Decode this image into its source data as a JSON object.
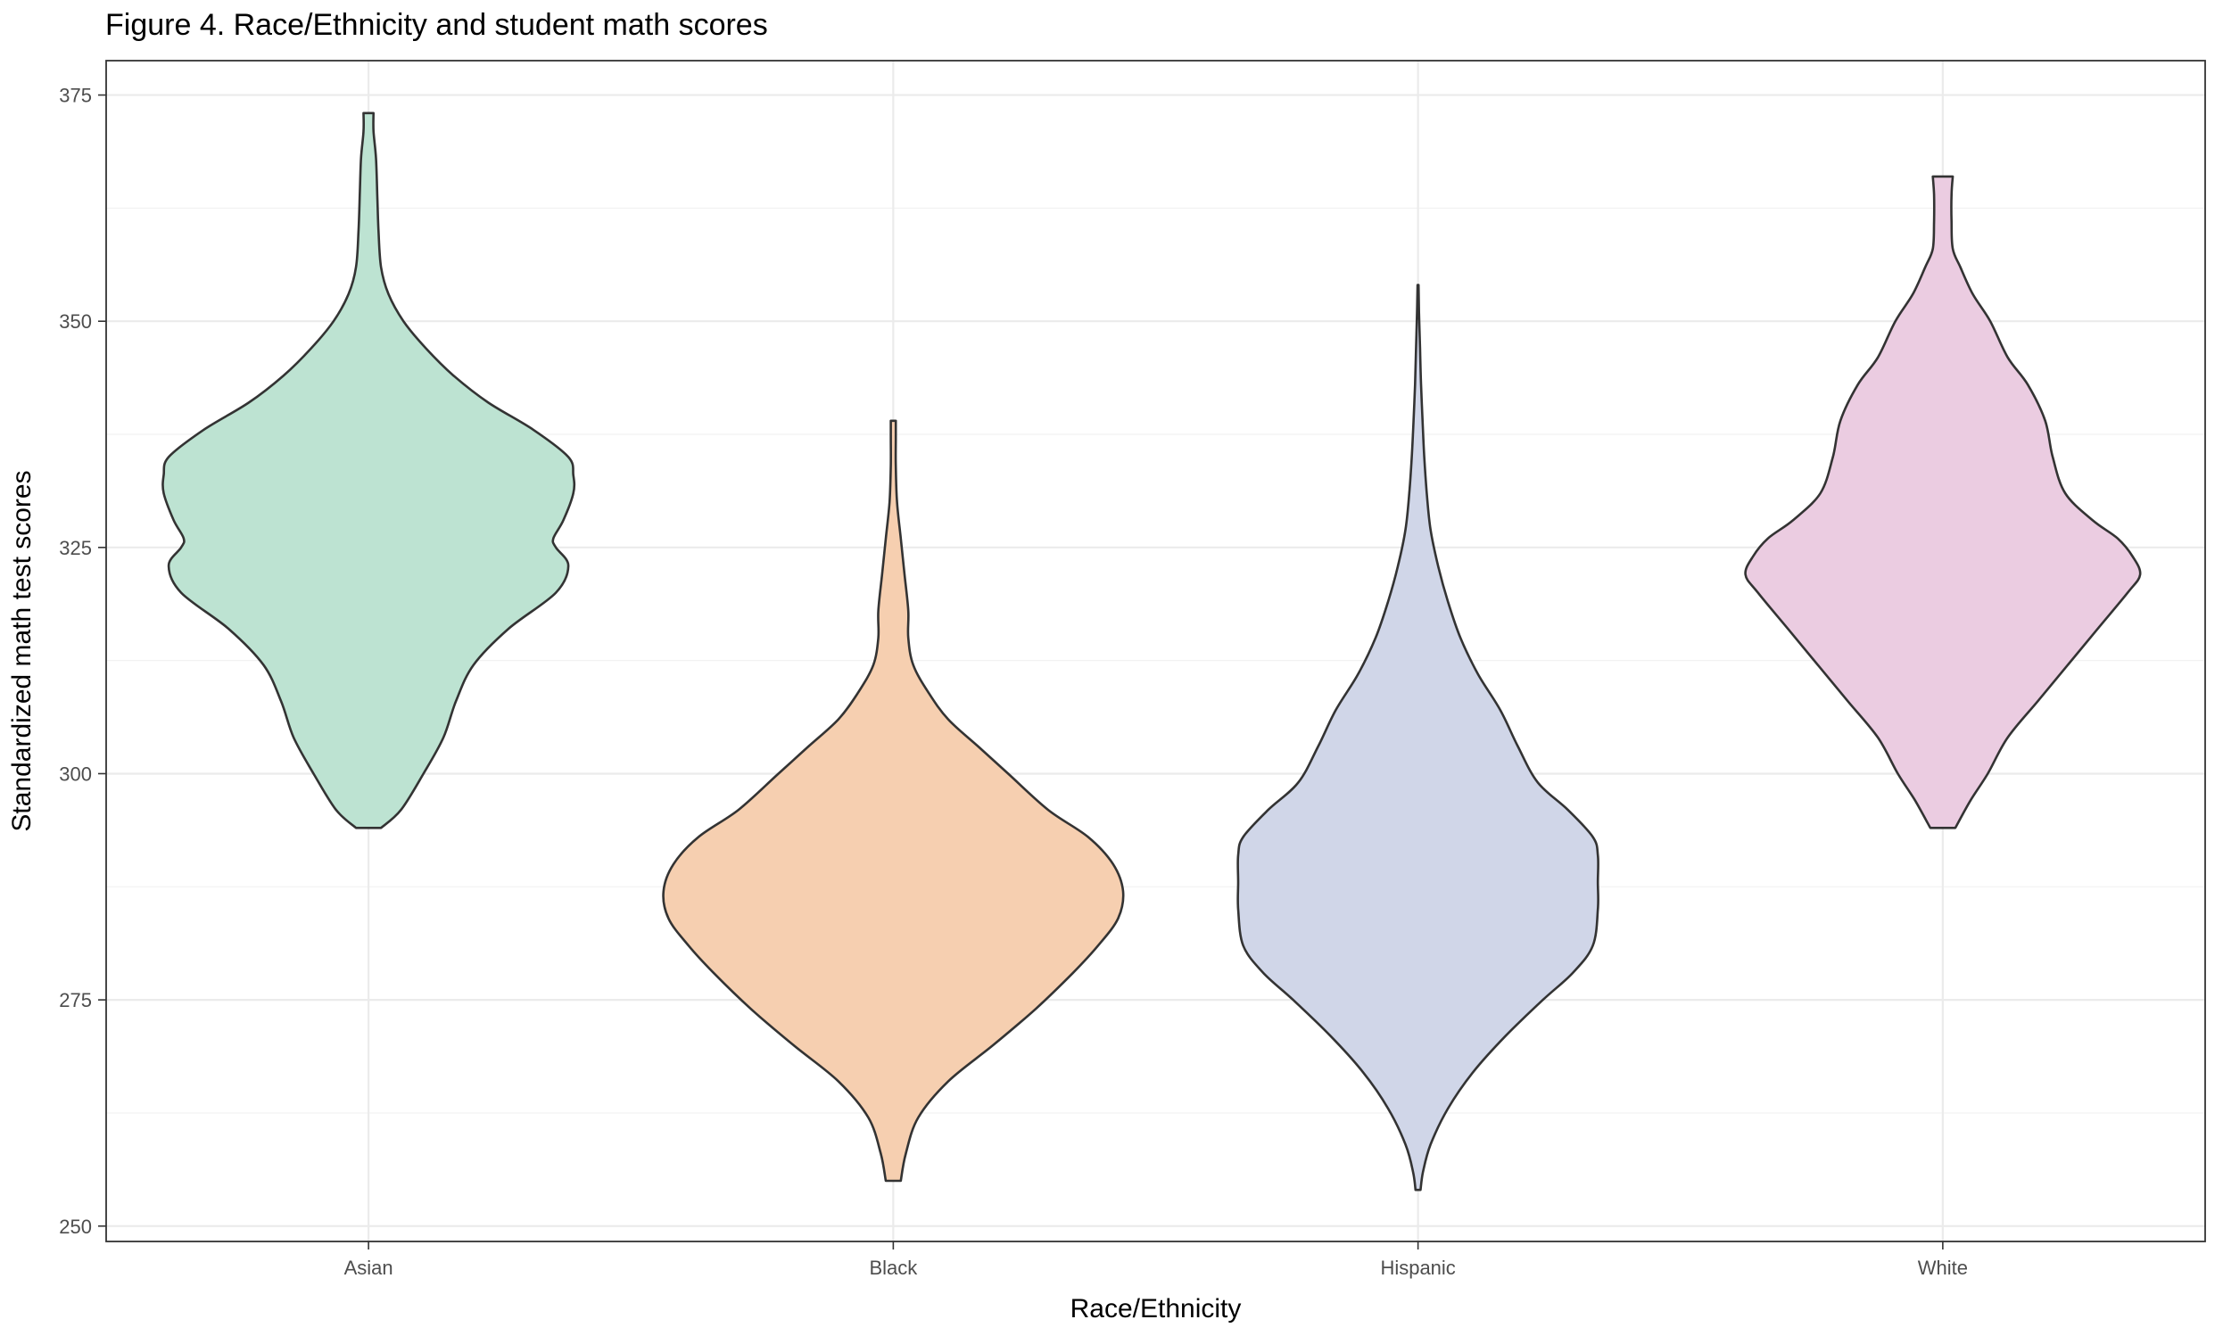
{
  "chart_data": {
    "type": "violin",
    "title": "Figure 4. Race/Ethnicity and student math scores",
    "xlabel": "Race/Ethnicity",
    "ylabel": "Standardized math test scores",
    "ylim": [
      248.3,
      378.8
    ],
    "yticks": [
      250,
      275,
      300,
      325,
      350,
      375
    ],
    "ytick_labels": [
      "250",
      "275",
      "300",
      "325",
      "350",
      "375"
    ],
    "grid": true,
    "legend": "none",
    "categories": [
      "Asian",
      "Black",
      "Hispanic",
      "White"
    ],
    "series": [
      {
        "category": "Asian",
        "color": "#bde3d2",
        "min": 294,
        "max": 373,
        "profile": [
          [
            294,
            0.05
          ],
          [
            296,
            0.13
          ],
          [
            300,
            0.22
          ],
          [
            304,
            0.3
          ],
          [
            308,
            0.35
          ],
          [
            312,
            0.42
          ],
          [
            316,
            0.56
          ],
          [
            320,
            0.75
          ],
          [
            323,
            0.8
          ],
          [
            325,
            0.75
          ],
          [
            326,
            0.74
          ],
          [
            328,
            0.78
          ],
          [
            331,
            0.82
          ],
          [
            333,
            0.82
          ],
          [
            335,
            0.8
          ],
          [
            338,
            0.66
          ],
          [
            341,
            0.48
          ],
          [
            344,
            0.34
          ],
          [
            347,
            0.23
          ],
          [
            350,
            0.14
          ],
          [
            353,
            0.08
          ],
          [
            356,
            0.05
          ],
          [
            360,
            0.04
          ],
          [
            364,
            0.035
          ],
          [
            368,
            0.03
          ],
          [
            371,
            0.02
          ],
          [
            373,
            0.02
          ]
        ]
      },
      {
        "category": "Black",
        "color": "#f6cfb0",
        "min": 255,
        "max": 339,
        "profile": [
          [
            255,
            0.03
          ],
          [
            258,
            0.05
          ],
          [
            262,
            0.1
          ],
          [
            266,
            0.22
          ],
          [
            270,
            0.4
          ],
          [
            274,
            0.57
          ],
          [
            278,
            0.72
          ],
          [
            281,
            0.82
          ],
          [
            284,
            0.9
          ],
          [
            287,
            0.92
          ],
          [
            290,
            0.88
          ],
          [
            293,
            0.78
          ],
          [
            296,
            0.62
          ],
          [
            300,
            0.46
          ],
          [
            303,
            0.34
          ],
          [
            306,
            0.22
          ],
          [
            309,
            0.14
          ],
          [
            312,
            0.08
          ],
          [
            315,
            0.06
          ],
          [
            318,
            0.06
          ],
          [
            322,
            0.045
          ],
          [
            326,
            0.03
          ],
          [
            330,
            0.015
          ],
          [
            334,
            0.01
          ],
          [
            337,
            0.01
          ],
          [
            339,
            0.01
          ]
        ]
      },
      {
        "category": "Hispanic",
        "color": "#d0d6e8",
        "min": 254,
        "max": 354,
        "profile": [
          [
            254,
            0.01
          ],
          [
            256,
            0.02
          ],
          [
            259,
            0.05
          ],
          [
            263,
            0.12
          ],
          [
            267,
            0.22
          ],
          [
            271,
            0.35
          ],
          [
            275,
            0.5
          ],
          [
            278,
            0.62
          ],
          [
            281,
            0.7
          ],
          [
            285,
            0.72
          ],
          [
            288,
            0.72
          ],
          [
            291,
            0.72
          ],
          [
            293,
            0.7
          ],
          [
            296,
            0.6
          ],
          [
            299,
            0.48
          ],
          [
            303,
            0.4
          ],
          [
            307,
            0.33
          ],
          [
            311,
            0.24
          ],
          [
            315,
            0.17
          ],
          [
            319,
            0.12
          ],
          [
            323,
            0.08
          ],
          [
            327,
            0.05
          ],
          [
            331,
            0.035
          ],
          [
            335,
            0.025
          ],
          [
            339,
            0.018
          ],
          [
            343,
            0.012
          ],
          [
            347,
            0.008
          ],
          [
            351,
            0.004
          ],
          [
            354,
            0.002
          ]
        ]
      },
      {
        "category": "White",
        "color": "#ebcce1",
        "min": 294,
        "max": 366,
        "profile": [
          [
            294,
            0.05
          ],
          [
            297,
            0.11
          ],
          [
            300,
            0.18
          ],
          [
            304,
            0.26
          ],
          [
            308,
            0.38
          ],
          [
            312,
            0.5
          ],
          [
            316,
            0.62
          ],
          [
            320,
            0.74
          ],
          [
            322,
            0.79
          ],
          [
            324,
            0.76
          ],
          [
            326,
            0.7
          ],
          [
            328,
            0.6
          ],
          [
            331,
            0.49
          ],
          [
            335,
            0.44
          ],
          [
            339,
            0.41
          ],
          [
            343,
            0.34
          ],
          [
            346,
            0.26
          ],
          [
            350,
            0.19
          ],
          [
            353,
            0.12
          ],
          [
            356,
            0.07
          ],
          [
            358,
            0.04
          ],
          [
            361,
            0.035
          ],
          [
            364,
            0.035
          ],
          [
            366,
            0.04
          ]
        ]
      }
    ]
  }
}
